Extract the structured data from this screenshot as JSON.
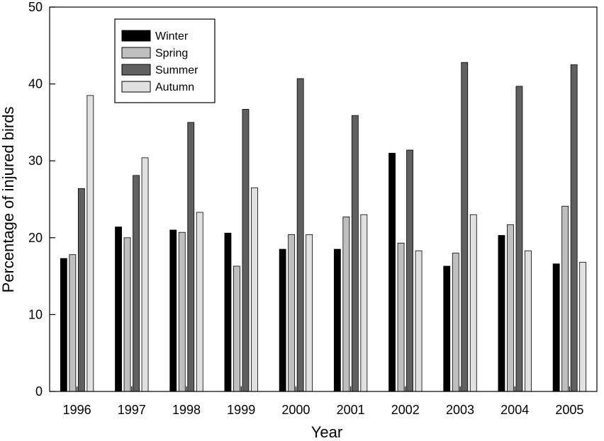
{
  "chart_data": {
    "type": "bar",
    "title": "",
    "xlabel": "Year",
    "ylabel": "Percentage of injured birds",
    "ylim": [
      0,
      50
    ],
    "yticks": [
      0,
      10,
      20,
      30,
      40,
      50
    ],
    "categories": [
      "1996",
      "1997",
      "1998",
      "1999",
      "2000",
      "2001",
      "2002",
      "2003",
      "2004",
      "2005"
    ],
    "series": [
      {
        "name": "Winter",
        "color": "#000000",
        "values": [
          17.3,
          21.4,
          21.0,
          20.6,
          18.5,
          18.5,
          31.0,
          16.3,
          20.3,
          16.6
        ]
      },
      {
        "name": "Spring",
        "color": "#bfbfbf",
        "values": [
          17.8,
          20.0,
          20.7,
          16.3,
          20.4,
          22.7,
          19.3,
          18.0,
          21.7,
          24.1
        ]
      },
      {
        "name": "Summer",
        "color": "#606060",
        "values": [
          26.4,
          28.1,
          35.0,
          36.7,
          40.7,
          35.9,
          31.4,
          42.8,
          39.7,
          42.5
        ]
      },
      {
        "name": "Autumn",
        "color": "#e0e0e0",
        "values": [
          38.5,
          30.4,
          23.3,
          26.5,
          20.4,
          23.0,
          18.3,
          23.0,
          18.3,
          16.8
        ]
      }
    ],
    "legend": "top-left",
    "grid": false
  }
}
